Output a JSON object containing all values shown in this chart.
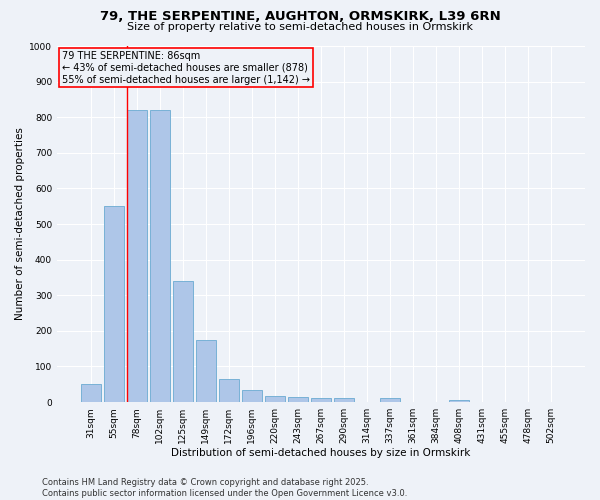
{
  "title1": "79, THE SERPENTINE, AUGHTON, ORMSKIRK, L39 6RN",
  "title2": "Size of property relative to semi-detached houses in Ormskirk",
  "xlabel": "Distribution of semi-detached houses by size in Ormskirk",
  "ylabel": "Number of semi-detached properties",
  "categories": [
    "31sqm",
    "55sqm",
    "78sqm",
    "102sqm",
    "125sqm",
    "149sqm",
    "172sqm",
    "196sqm",
    "220sqm",
    "243sqm",
    "267sqm",
    "290sqm",
    "314sqm",
    "337sqm",
    "361sqm",
    "384sqm",
    "408sqm",
    "431sqm",
    "455sqm",
    "478sqm",
    "502sqm"
  ],
  "values": [
    52,
    550,
    820,
    820,
    340,
    175,
    65,
    35,
    18,
    15,
    12,
    12,
    0,
    12,
    0,
    0,
    5,
    0,
    0,
    0,
    0
  ],
  "bar_color": "#aec6e8",
  "bar_edge_color": "#6aabd2",
  "annotation_text": "79 THE SERPENTINE: 86sqm\n← 43% of semi-detached houses are smaller (878)\n55% of semi-detached houses are larger (1,142) →",
  "vline_index": 2,
  "vline_color": "red",
  "annotation_box_color": "red",
  "ylim": [
    0,
    1000
  ],
  "yticks": [
    0,
    100,
    200,
    300,
    400,
    500,
    600,
    700,
    800,
    900,
    1000
  ],
  "footer1": "Contains HM Land Registry data © Crown copyright and database right 2025.",
  "footer2": "Contains public sector information licensed under the Open Government Licence v3.0.",
  "background_color": "#eef2f8",
  "grid_color": "#ffffff",
  "title_fontsize": 9.5,
  "subtitle_fontsize": 8,
  "axis_label_fontsize": 7.5,
  "tick_fontsize": 6.5,
  "footer_fontsize": 6,
  "annotation_fontsize": 7
}
